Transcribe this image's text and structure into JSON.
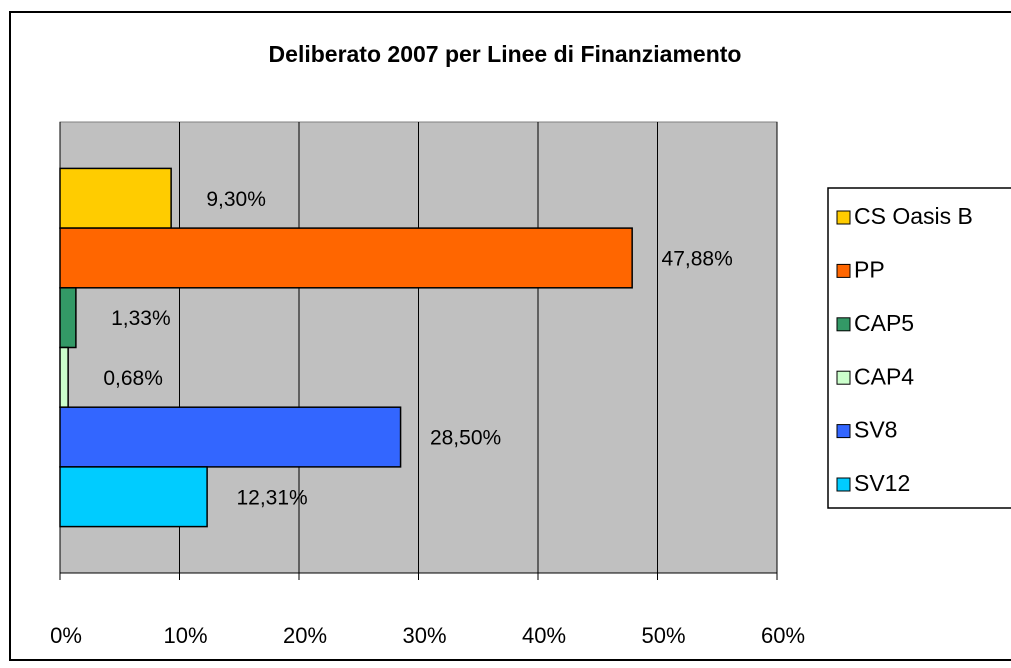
{
  "chart_data": {
    "type": "bar",
    "orientation": "horizontal",
    "title": "Deliberato 2007 per Linee di Finanziamento",
    "series": [
      {
        "name": "CS Oasis B",
        "color": "#ffcc00",
        "values": [
          9.3
        ],
        "value_labels": [
          "9,30%"
        ]
      },
      {
        "name": "PP",
        "color": "#ff6600",
        "values": [
          47.88
        ],
        "value_labels": [
          "47,88%"
        ]
      },
      {
        "name": "CAP5",
        "color": "#339966",
        "values": [
          1.33
        ],
        "value_labels": [
          "1,33%"
        ]
      },
      {
        "name": "CAP4",
        "color": "#ccffcc",
        "values": [
          0.68
        ],
        "value_labels": [
          "0,68%"
        ]
      },
      {
        "name": "SV8",
        "color": "#3366ff",
        "values": [
          28.5
        ],
        "value_labels": [
          "28,50%"
        ]
      },
      {
        "name": "SV12",
        "color": "#00ccff",
        "values": [
          12.31
        ],
        "value_labels": [
          "12,31%"
        ]
      }
    ],
    "xlim": [
      0,
      60
    ],
    "xticks": [
      {
        "value": 0,
        "label": "0%"
      },
      {
        "value": 10,
        "label": "10%"
      },
      {
        "value": 20,
        "label": "20%"
      },
      {
        "value": 30,
        "label": "30%"
      },
      {
        "value": 40,
        "label": "40%"
      },
      {
        "value": 50,
        "label": "50%"
      },
      {
        "value": 60,
        "label": "60%"
      }
    ],
    "grid": true,
    "legend": "right",
    "plot_background": "#c0c0c0"
  }
}
